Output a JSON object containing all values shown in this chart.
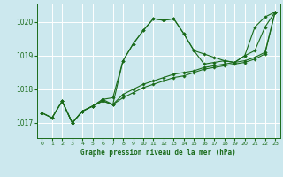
{
  "background_color": "#cce8ee",
  "grid_color": "#ffffff",
  "line_color": "#1a6b1a",
  "title": "Graphe pression niveau de la mer (hPa)",
  "ylabel_ticks": [
    1017,
    1018,
    1019,
    1020
  ],
  "xlim": [
    -0.5,
    23.5
  ],
  "ylim": [
    1016.55,
    1020.55
  ],
  "series": [
    {
      "x": [
        0,
        1,
        2,
        3,
        4,
        5,
        6,
        7,
        8,
        9,
        10,
        11,
        12,
        13,
        14,
        15,
        16,
        17,
        18,
        19,
        20,
        21,
        22,
        23
      ],
      "y": [
        1017.3,
        1017.15,
        1017.65,
        1017.0,
        1017.35,
        1017.5,
        1017.7,
        1017.75,
        1018.85,
        1019.35,
        1019.75,
        1020.1,
        1020.05,
        1020.1,
        1019.65,
        1019.15,
        1018.75,
        1018.8,
        1018.85,
        1018.8,
        1019.0,
        1019.85,
        1020.15,
        1020.3
      ]
    },
    {
      "x": [
        0,
        1,
        2,
        3,
        4,
        5,
        6,
        7,
        8,
        9,
        10,
        11,
        12,
        13,
        14,
        15,
        16,
        17,
        18,
        19,
        20,
        21,
        22,
        23
      ],
      "y": [
        1017.3,
        1017.15,
        1017.65,
        1017.0,
        1017.35,
        1017.5,
        1017.65,
        1017.55,
        1017.85,
        1018.0,
        1018.15,
        1018.25,
        1018.35,
        1018.45,
        1018.5,
        1018.55,
        1018.65,
        1018.7,
        1018.75,
        1018.8,
        1018.85,
        1018.95,
        1019.1,
        1020.3
      ]
    },
    {
      "x": [
        0,
        1,
        2,
        3,
        4,
        5,
        6,
        7,
        8,
        9,
        10,
        11,
        12,
        13,
        14,
        15,
        16,
        17,
        18,
        19,
        20,
        21,
        22,
        23
      ],
      "y": [
        1017.3,
        1017.15,
        1017.65,
        1017.0,
        1017.35,
        1017.5,
        1017.65,
        1017.55,
        1017.75,
        1017.9,
        1018.05,
        1018.15,
        1018.25,
        1018.35,
        1018.4,
        1018.5,
        1018.6,
        1018.65,
        1018.7,
        1018.75,
        1018.8,
        1018.9,
        1019.05,
        1020.3
      ]
    },
    {
      "x": [
        2,
        3,
        4,
        5,
        6,
        7,
        8,
        9,
        10,
        11,
        12,
        13,
        14,
        15,
        16,
        17,
        18,
        19,
        20,
        21,
        22,
        23
      ],
      "y": [
        1017.65,
        1017.0,
        1017.35,
        1017.5,
        1017.7,
        1017.55,
        1018.85,
        1019.35,
        1019.75,
        1020.1,
        1020.05,
        1020.1,
        1019.65,
        1019.15,
        1019.05,
        1018.95,
        1018.85,
        1018.8,
        1019.0,
        1019.15,
        1019.85,
        1020.3
      ]
    }
  ]
}
